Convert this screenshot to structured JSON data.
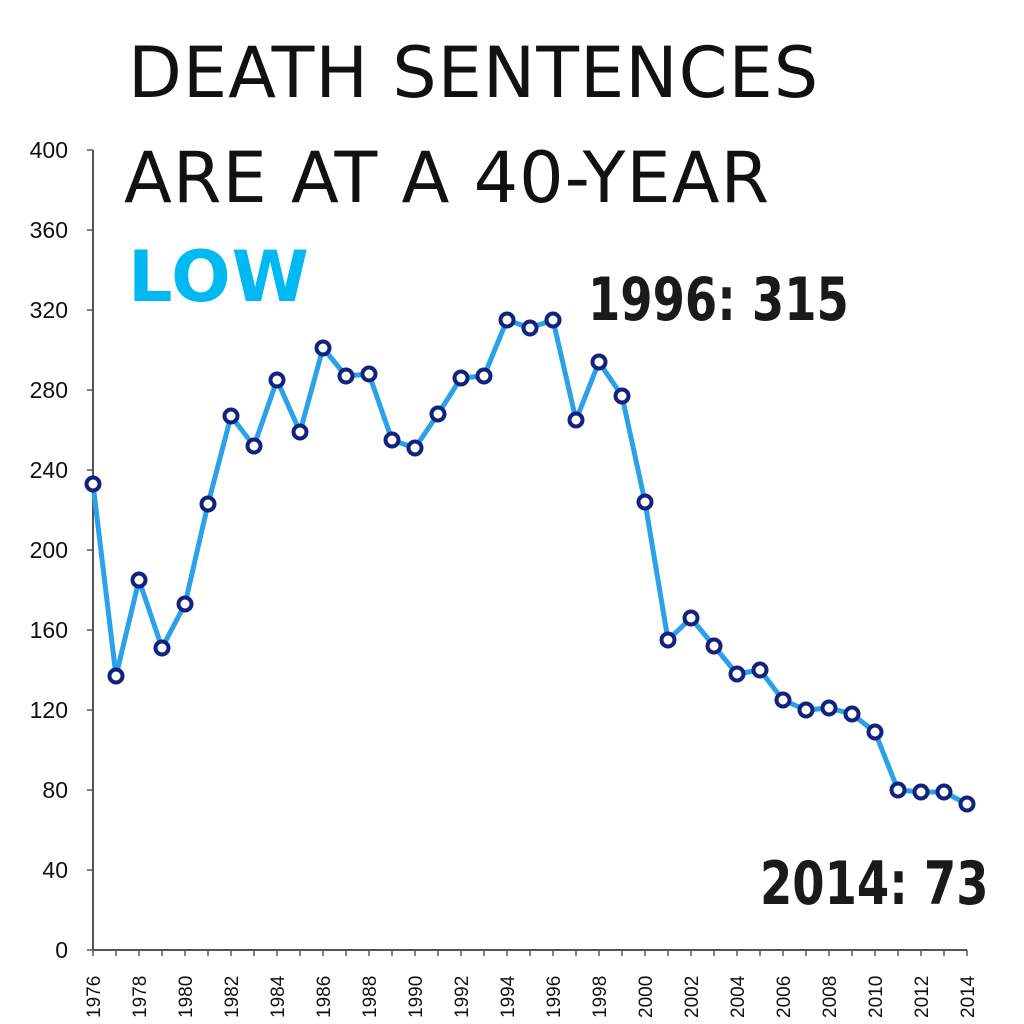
{
  "chart_data": {
    "type": "line",
    "title_lines": [
      "DEATH SENTENCES",
      "ARE AT A 40-YEAR",
      "LOW"
    ],
    "xlabel": "",
    "ylabel": "",
    "x": [
      1976,
      1977,
      1978,
      1979,
      1980,
      1981,
      1982,
      1983,
      1984,
      1985,
      1986,
      1987,
      1988,
      1989,
      1990,
      1991,
      1992,
      1993,
      1994,
      1995,
      1996,
      1997,
      1998,
      1999,
      2000,
      2001,
      2002,
      2003,
      2004,
      2005,
      2006,
      2007,
      2008,
      2009,
      2010,
      2011,
      2012,
      2013,
      2014
    ],
    "series": [
      {
        "values": [
          233,
          137,
          185,
          151,
          173,
          223,
          267,
          252,
          285,
          259,
          301,
          287,
          288,
          255,
          251,
          268,
          286,
          287,
          315,
          311,
          315,
          265,
          294,
          277,
          224,
          155,
          166,
          152,
          138,
          140,
          125,
          120,
          121,
          118,
          109,
          80,
          79,
          79,
          73
        ]
      }
    ],
    "x_tick_labels": [
      "1976",
      "1978",
      "1980",
      "1982",
      "1984",
      "1986",
      "1988",
      "1990",
      "1992",
      "1994",
      "1996",
      "1998",
      "2000",
      "2002",
      "2004",
      "2006",
      "2008",
      "2010",
      "2012",
      "2014"
    ],
    "y_tick_labels": [
      "0",
      "40",
      "80",
      "120",
      "160",
      "200",
      "240",
      "280",
      "320",
      "360",
      "400"
    ],
    "xlim": [
      1976,
      2014
    ],
    "ylim": [
      0,
      400
    ],
    "grid": false,
    "legend": "none",
    "annotations": [
      "1996: 315",
      "2014: 73"
    ],
    "colors": {
      "line": "#2aa1e8",
      "marker_edge": "#12237f",
      "marker_fill": "#ffffff",
      "title_accent": "#00b8f2",
      "axis": "#555555"
    }
  }
}
